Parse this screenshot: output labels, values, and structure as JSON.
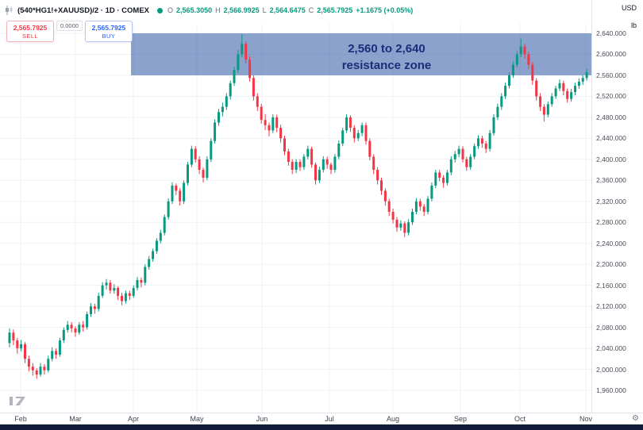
{
  "colors": {
    "green": "#089981",
    "red": "#f23645",
    "blue": "#2962ff",
    "zone_fill": "#3c64aa",
    "zone_text": "#1b2d7b",
    "taskbar": "#111d38"
  },
  "header": {
    "symbol_title": "(540*HG1!+XAUUSD)/2 · 1D · COMEX",
    "ohlc": {
      "o_label": "O",
      "o": "2,565.3050",
      "h_label": "H",
      "h": "2,566.9925",
      "l_label": "L",
      "l": "2,564.6475",
      "c_label": "C",
      "c": "2,565.7925",
      "change": "+1.1675 (+0.05%)"
    },
    "currency": "USD",
    "unit": "lb"
  },
  "trade_panel": {
    "sell_price": "2,565.7925",
    "sell_label": "SELL",
    "spread": "0.0000",
    "buy_price": "2,565.7925",
    "buy_label": "BUY"
  },
  "annotation": {
    "line1": "2,560 to 2,640",
    "line2": "resistance zone"
  },
  "chart_data": {
    "type": "candlestick",
    "title": "(540*HG1!+XAUUSD)/2",
    "timeframe": "1D",
    "exchange": "COMEX",
    "ylim": [
      1960,
      2640
    ],
    "ytick_step": 40,
    "yticks": [
      "2,640.000",
      "2,600.000",
      "2,560.000",
      "2,520.000",
      "2,480.000",
      "2,440.000",
      "2,400.000",
      "2,360.000",
      "2,320.000",
      "2,280.000",
      "2,240.000",
      "2,200.000",
      "2,160.000",
      "2,120.000",
      "2,080.000",
      "2,040.000",
      "2,000.000",
      "1,960.000"
    ],
    "x_labels": [
      "Feb",
      "Mar",
      "Apr",
      "May",
      "Jun",
      "Jul",
      "Aug",
      "Sep",
      "Oct",
      "Nov"
    ],
    "grid": true,
    "zone": {
      "from": 2560,
      "to": 2640,
      "label": "2,560 to 2,640 resistance zone"
    },
    "candles": [
      [
        2050,
        2078,
        2042,
        2070
      ],
      [
        2070,
        2076,
        2046,
        2055
      ],
      [
        2055,
        2060,
        2030,
        2040
      ],
      [
        2040,
        2056,
        2034,
        2048
      ],
      [
        2048,
        2052,
        2012,
        2020
      ],
      [
        2020,
        2026,
        1996,
        2005
      ],
      [
        2005,
        2012,
        1988,
        1998
      ],
      [
        1998,
        2002,
        1982,
        1990
      ],
      [
        1990,
        2012,
        1986,
        2005
      ],
      [
        2005,
        2010,
        1990,
        1998
      ],
      [
        1998,
        2026,
        1994,
        2020
      ],
      [
        2020,
        2042,
        2015,
        2035
      ],
      [
        2035,
        2040,
        2020,
        2028
      ],
      [
        2028,
        2060,
        2024,
        2055
      ],
      [
        2055,
        2080,
        2050,
        2075
      ],
      [
        2075,
        2092,
        2070,
        2085
      ],
      [
        2085,
        2090,
        2070,
        2078
      ],
      [
        2078,
        2082,
        2062,
        2070
      ],
      [
        2070,
        2090,
        2066,
        2085
      ],
      [
        2085,
        2092,
        2072,
        2080
      ],
      [
        2080,
        2110,
        2076,
        2105
      ],
      [
        2105,
        2126,
        2100,
        2120
      ],
      [
        2120,
        2125,
        2106,
        2115
      ],
      [
        2115,
        2146,
        2110,
        2140
      ],
      [
        2140,
        2166,
        2136,
        2160
      ],
      [
        2160,
        2172,
        2152,
        2165
      ],
      [
        2165,
        2170,
        2144,
        2150
      ],
      [
        2150,
        2162,
        2144,
        2155
      ],
      [
        2155,
        2158,
        2132,
        2140
      ],
      [
        2140,
        2146,
        2122,
        2130
      ],
      [
        2130,
        2150,
        2125,
        2145
      ],
      [
        2145,
        2150,
        2132,
        2140
      ],
      [
        2140,
        2160,
        2136,
        2155
      ],
      [
        2155,
        2176,
        2150,
        2170
      ],
      [
        2170,
        2175,
        2156,
        2165
      ],
      [
        2165,
        2200,
        2160,
        2195
      ],
      [
        2195,
        2216,
        2190,
        2210
      ],
      [
        2210,
        2230,
        2205,
        2225
      ],
      [
        2225,
        2250,
        2220,
        2245
      ],
      [
        2245,
        2266,
        2240,
        2260
      ],
      [
        2260,
        2295,
        2255,
        2290
      ],
      [
        2290,
        2326,
        2285,
        2320
      ],
      [
        2320,
        2356,
        2315,
        2350
      ],
      [
        2350,
        2354,
        2332,
        2340
      ],
      [
        2340,
        2345,
        2312,
        2320
      ],
      [
        2320,
        2360,
        2315,
        2355
      ],
      [
        2355,
        2395,
        2350,
        2390
      ],
      [
        2390,
        2426,
        2385,
        2420
      ],
      [
        2420,
        2425,
        2394,
        2400
      ],
      [
        2400,
        2406,
        2372,
        2380
      ],
      [
        2380,
        2384,
        2356,
        2365
      ],
      [
        2365,
        2406,
        2360,
        2400
      ],
      [
        2400,
        2440,
        2395,
        2435
      ],
      [
        2435,
        2476,
        2430,
        2470
      ],
      [
        2470,
        2496,
        2464,
        2490
      ],
      [
        2490,
        2508,
        2482,
        2500
      ],
      [
        2500,
        2526,
        2494,
        2520
      ],
      [
        2520,
        2550,
        2514,
        2545
      ],
      [
        2545,
        2576,
        2540,
        2570
      ],
      [
        2570,
        2608,
        2565,
        2600
      ],
      [
        2600,
        2638,
        2594,
        2620
      ],
      [
        2620,
        2625,
        2582,
        2590
      ],
      [
        2590,
        2596,
        2548,
        2555
      ],
      [
        2555,
        2560,
        2512,
        2520
      ],
      [
        2520,
        2526,
        2492,
        2500
      ],
      [
        2500,
        2506,
        2468,
        2475
      ],
      [
        2475,
        2486,
        2456,
        2465
      ],
      [
        2465,
        2470,
        2444,
        2455
      ],
      [
        2455,
        2486,
        2450,
        2480
      ],
      [
        2480,
        2485,
        2452,
        2460
      ],
      [
        2460,
        2466,
        2432,
        2440
      ],
      [
        2440,
        2445,
        2408,
        2415
      ],
      [
        2415,
        2420,
        2388,
        2395
      ],
      [
        2395,
        2400,
        2372,
        2380
      ],
      [
        2380,
        2400,
        2374,
        2395
      ],
      [
        2395,
        2400,
        2378,
        2385
      ],
      [
        2385,
        2410,
        2380,
        2405
      ],
      [
        2405,
        2426,
        2400,
        2420
      ],
      [
        2420,
        2424,
        2384,
        2390
      ],
      [
        2390,
        2394,
        2352,
        2360
      ],
      [
        2360,
        2386,
        2355,
        2380
      ],
      [
        2380,
        2406,
        2375,
        2400
      ],
      [
        2400,
        2405,
        2382,
        2390
      ],
      [
        2390,
        2394,
        2372,
        2380
      ],
      [
        2380,
        2410,
        2375,
        2405
      ],
      [
        2405,
        2436,
        2400,
        2430
      ],
      [
        2430,
        2460,
        2425,
        2455
      ],
      [
        2455,
        2486,
        2450,
        2480
      ],
      [
        2480,
        2484,
        2452,
        2460
      ],
      [
        2460,
        2465,
        2432,
        2440
      ],
      [
        2440,
        2456,
        2435,
        2450
      ],
      [
        2450,
        2470,
        2444,
        2465
      ],
      [
        2465,
        2470,
        2428,
        2435
      ],
      [
        2435,
        2440,
        2398,
        2405
      ],
      [
        2405,
        2410,
        2372,
        2380
      ],
      [
        2380,
        2385,
        2352,
        2360
      ],
      [
        2360,
        2365,
        2332,
        2340
      ],
      [
        2340,
        2345,
        2312,
        2320
      ],
      [
        2320,
        2325,
        2292,
        2300
      ],
      [
        2300,
        2306,
        2278,
        2285
      ],
      [
        2285,
        2290,
        2262,
        2270
      ],
      [
        2270,
        2284,
        2264,
        2278
      ],
      [
        2278,
        2282,
        2252,
        2260
      ],
      [
        2260,
        2286,
        2255,
        2280
      ],
      [
        2280,
        2306,
        2275,
        2300
      ],
      [
        2300,
        2326,
        2295,
        2320
      ],
      [
        2320,
        2325,
        2302,
        2310
      ],
      [
        2310,
        2315,
        2292,
        2300
      ],
      [
        2300,
        2330,
        2295,
        2325
      ],
      [
        2325,
        2356,
        2320,
        2350
      ],
      [
        2350,
        2380,
        2345,
        2375
      ],
      [
        2375,
        2380,
        2358,
        2365
      ],
      [
        2365,
        2370,
        2346,
        2355
      ],
      [
        2355,
        2380,
        2350,
        2375
      ],
      [
        2375,
        2406,
        2370,
        2400
      ],
      [
        2400,
        2416,
        2394,
        2410
      ],
      [
        2410,
        2426,
        2404,
        2420
      ],
      [
        2420,
        2425,
        2394,
        2400
      ],
      [
        2400,
        2405,
        2378,
        2385
      ],
      [
        2385,
        2410,
        2380,
        2405
      ],
      [
        2405,
        2430,
        2400,
        2425
      ],
      [
        2425,
        2446,
        2420,
        2440
      ],
      [
        2440,
        2445,
        2422,
        2430
      ],
      [
        2430,
        2435,
        2412,
        2420
      ],
      [
        2420,
        2456,
        2415,
        2450
      ],
      [
        2450,
        2486,
        2445,
        2480
      ],
      [
        2480,
        2506,
        2475,
        2500
      ],
      [
        2500,
        2526,
        2494,
        2520
      ],
      [
        2520,
        2546,
        2515,
        2540
      ],
      [
        2540,
        2566,
        2535,
        2560
      ],
      [
        2560,
        2586,
        2555,
        2580
      ],
      [
        2580,
        2606,
        2575,
        2600
      ],
      [
        2600,
        2630,
        2595,
        2615
      ],
      [
        2615,
        2620,
        2592,
        2600
      ],
      [
        2600,
        2605,
        2572,
        2580
      ],
      [
        2580,
        2585,
        2542,
        2550
      ],
      [
        2550,
        2555,
        2512,
        2520
      ],
      [
        2520,
        2526,
        2492,
        2500
      ],
      [
        2500,
        2505,
        2472,
        2485
      ],
      [
        2485,
        2510,
        2480,
        2505
      ],
      [
        2505,
        2526,
        2500,
        2520
      ],
      [
        2520,
        2540,
        2515,
        2535
      ],
      [
        2535,
        2552,
        2530,
        2545
      ],
      [
        2545,
        2550,
        2522,
        2530
      ],
      [
        2530,
        2535,
        2508,
        2515
      ],
      [
        2515,
        2534,
        2510,
        2528
      ],
      [
        2528,
        2546,
        2522,
        2540
      ],
      [
        2540,
        2554,
        2534,
        2548
      ],
      [
        2548,
        2560,
        2542,
        2555
      ],
      [
        2555,
        2572,
        2550,
        2566
      ]
    ]
  }
}
